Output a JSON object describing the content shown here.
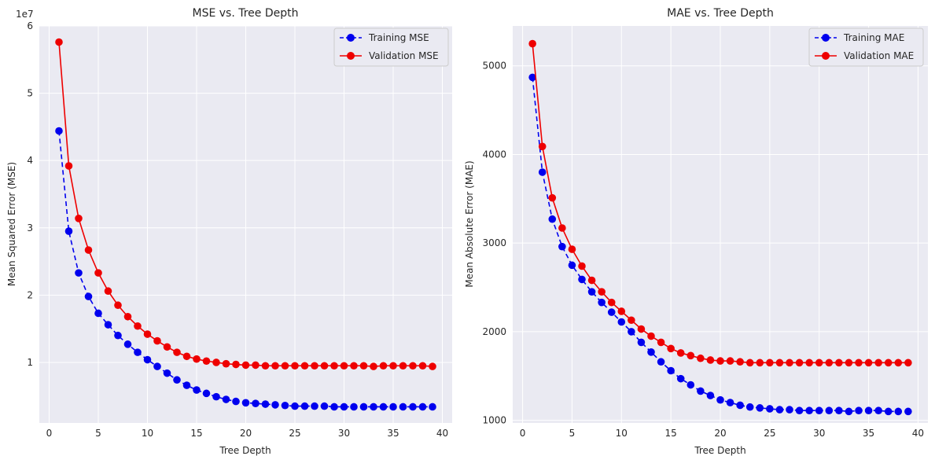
{
  "chart_data": [
    {
      "type": "line",
      "title": "MSE vs. Tree Depth",
      "xlabel": "Tree Depth",
      "ylabel": "Mean Squared Error (MSE)",
      "offset_text": "1e7",
      "xlim": [
        0,
        40
      ],
      "ylim": [
        1000000,
        60000000
      ],
      "xticks": [
        0,
        5,
        10,
        15,
        20,
        25,
        30,
        35,
        40
      ],
      "xtick_labels": [
        "0",
        "5",
        "10",
        "15",
        "20",
        "25",
        "30",
        "35",
        "40"
      ],
      "yticks": [
        10000000,
        20000000,
        30000000,
        40000000,
        50000000,
        60000000
      ],
      "ytick_labels": [
        "1",
        "2",
        "3",
        "4",
        "5",
        "6"
      ],
      "grid": true,
      "legend_placement": "top-right",
      "x": [
        1,
        2,
        3,
        4,
        5,
        6,
        7,
        8,
        9,
        10,
        11,
        12,
        13,
        14,
        15,
        16,
        17,
        18,
        19,
        20,
        21,
        22,
        23,
        24,
        25,
        26,
        27,
        28,
        29,
        30,
        31,
        32,
        33,
        34,
        35,
        36,
        37,
        38,
        39
      ],
      "series": [
        {
          "name": "Training MSE",
          "color": "#0000ee",
          "style": "dashed",
          "values": [
            44400000,
            29500000,
            23300000,
            19800000,
            17300000,
            15600000,
            14000000,
            12700000,
            11500000,
            10400000,
            9400000,
            8400000,
            7400000,
            6600000,
            5900000,
            5400000,
            4900000,
            4500000,
            4200000,
            4000000,
            3900000,
            3800000,
            3700000,
            3600000,
            3500000,
            3500000,
            3500000,
            3500000,
            3400000,
            3400000,
            3400000,
            3400000,
            3400000,
            3400000,
            3400000,
            3400000,
            3400000,
            3400000,
            3400000
          ]
        },
        {
          "name": "Validation MSE",
          "color": "#ee0000",
          "style": "solid",
          "values": [
            57600000,
            39200000,
            31400000,
            26700000,
            23300000,
            20600000,
            18500000,
            16800000,
            15400000,
            14200000,
            13200000,
            12300000,
            11500000,
            10900000,
            10500000,
            10200000,
            10000000,
            9800000,
            9700000,
            9600000,
            9600000,
            9500000,
            9500000,
            9500000,
            9500000,
            9500000,
            9500000,
            9500000,
            9500000,
            9500000,
            9500000,
            9500000,
            9400000,
            9500000,
            9500000,
            9500000,
            9500000,
            9500000,
            9400000
          ]
        }
      ]
    },
    {
      "type": "line",
      "title": "MAE vs. Tree Depth",
      "xlabel": "Tree Depth",
      "ylabel": "Mean Absolute Error (MAE)",
      "xlim": [
        0,
        40
      ],
      "ylim": [
        1000,
        5000
      ],
      "xticks": [
        0,
        5,
        10,
        15,
        20,
        25,
        30,
        35,
        40
      ],
      "xtick_labels": [
        "0",
        "5",
        "10",
        "15",
        "20",
        "25",
        "30",
        "35",
        "40"
      ],
      "yticks": [
        1000,
        2000,
        3000,
        4000,
        5000
      ],
      "ytick_labels": [
        "1000",
        "2000",
        "3000",
        "4000",
        "5000"
      ],
      "grid": true,
      "legend_placement": "top-right",
      "x": [
        1,
        2,
        3,
        4,
        5,
        6,
        7,
        8,
        9,
        10,
        11,
        12,
        13,
        14,
        15,
        16,
        17,
        18,
        19,
        20,
        21,
        22,
        23,
        24,
        25,
        26,
        27,
        28,
        29,
        30,
        31,
        32,
        33,
        34,
        35,
        36,
        37,
        38,
        39
      ],
      "series": [
        {
          "name": "Training MAE",
          "color": "#0000ee",
          "style": "dashed",
          "values": [
            4870,
            3800,
            3270,
            2960,
            2750,
            2590,
            2450,
            2330,
            2220,
            2110,
            2000,
            1880,
            1770,
            1660,
            1560,
            1470,
            1400,
            1330,
            1280,
            1230,
            1200,
            1170,
            1150,
            1140,
            1130,
            1120,
            1120,
            1110,
            1110,
            1110,
            1110,
            1110,
            1100,
            1110,
            1110,
            1110,
            1100,
            1100,
            1100
          ]
        },
        {
          "name": "Validation MAE",
          "color": "#ee0000",
          "style": "solid",
          "values": [
            5250,
            4090,
            3510,
            3170,
            2930,
            2740,
            2580,
            2450,
            2330,
            2230,
            2130,
            2030,
            1950,
            1880,
            1810,
            1760,
            1730,
            1700,
            1680,
            1670,
            1670,
            1660,
            1650,
            1650,
            1650,
            1650,
            1650,
            1650,
            1650,
            1650,
            1650,
            1650,
            1650,
            1650,
            1650,
            1650,
            1650,
            1650,
            1650
          ]
        }
      ]
    }
  ]
}
